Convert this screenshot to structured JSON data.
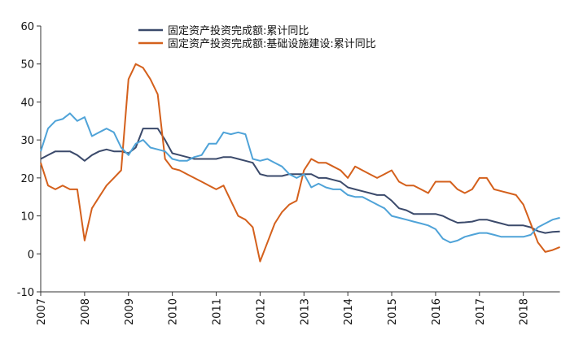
{
  "chart_data": {
    "type": "line",
    "categories": [
      "2007",
      null,
      null,
      null,
      null,
      null,
      "2008",
      null,
      null,
      null,
      null,
      null,
      "2009",
      null,
      null,
      null,
      null,
      null,
      "2010",
      null,
      null,
      null,
      null,
      null,
      "2011",
      null,
      null,
      null,
      null,
      null,
      "2012",
      null,
      null,
      null,
      null,
      null,
      "2013",
      null,
      null,
      null,
      null,
      null,
      "2014",
      null,
      null,
      null,
      null,
      null,
      "2015",
      null,
      null,
      null,
      null,
      null,
      "2016",
      null,
      null,
      null,
      null,
      null,
      "2017",
      null,
      null,
      null,
      null,
      null,
      "2018",
      null,
      null,
      null,
      null,
      null
    ],
    "series": [
      {
        "name": "固定资产投资完成额:累计同比",
        "color": "#3b4a6b",
        "values": [
          25,
          26,
          27,
          27,
          27,
          26,
          24.5,
          26,
          27,
          27.5,
          27,
          27,
          26.5,
          28,
          33,
          33,
          33,
          30,
          26.5,
          26,
          25.5,
          25,
          25,
          25,
          25,
          25.5,
          25.5,
          25,
          24.5,
          24,
          21,
          20.5,
          20.5,
          20.5,
          21,
          21,
          21,
          21,
          20,
          20,
          19.5,
          19,
          17.5,
          17,
          16.5,
          16,
          15.5,
          15.5,
          14,
          12,
          11.5,
          10.5,
          10.5,
          10.5,
          10.5,
          10,
          9,
          8.2,
          8.3,
          8.5,
          9,
          9,
          8.5,
          8,
          7.5,
          7.5,
          7.5,
          7,
          6,
          5.5,
          5.8,
          5.9
        ]
      },
      {
        "name": "固定资产投资完成额:基础设施建设:累计同比",
        "color": "#d4601c",
        "values": [
          24,
          18,
          17,
          18,
          17,
          17,
          3.5,
          12,
          15,
          18,
          20,
          22,
          46,
          50,
          49,
          46,
          42,
          25,
          22.5,
          22,
          21,
          20,
          19,
          18,
          17,
          18,
          14,
          10,
          9,
          7,
          -2,
          3,
          8,
          11,
          13,
          14,
          22,
          25,
          24,
          24,
          23,
          22,
          20,
          23,
          22,
          21,
          20,
          21,
          22,
          19,
          18,
          18,
          17,
          16,
          19,
          19,
          19,
          17,
          16,
          17,
          20,
          20,
          17,
          16.5,
          16,
          15.5,
          13,
          8,
          3,
          0.5,
          1,
          1.8
        ]
      },
      {
        "color": "#4fa3d8",
        "values": [
          27,
          33,
          35,
          35.5,
          37,
          35,
          36,
          31,
          32,
          33,
          32,
          28,
          26,
          29,
          30,
          28,
          27.5,
          27,
          25,
          24.5,
          24.5,
          25.5,
          26,
          29,
          29,
          32,
          31.5,
          32,
          31.5,
          25,
          24.5,
          25,
          24,
          23,
          21,
          20,
          21,
          17.5,
          18.5,
          17.5,
          17,
          17,
          15.5,
          15,
          15,
          14,
          13,
          12,
          10,
          9.5,
          9,
          8.5,
          8,
          7.5,
          6.5,
          4,
          3,
          3.5,
          4.5,
          5,
          5.5,
          5.5,
          5,
          4.5,
          4.5,
          4.5,
          4.5,
          5,
          7,
          8,
          9,
          9.5
        ]
      }
    ],
    "ylim": [
      -10,
      60
    ],
    "yticks": [
      -10,
      0,
      10,
      20,
      30,
      40,
      50,
      60
    ],
    "grid": false
  }
}
